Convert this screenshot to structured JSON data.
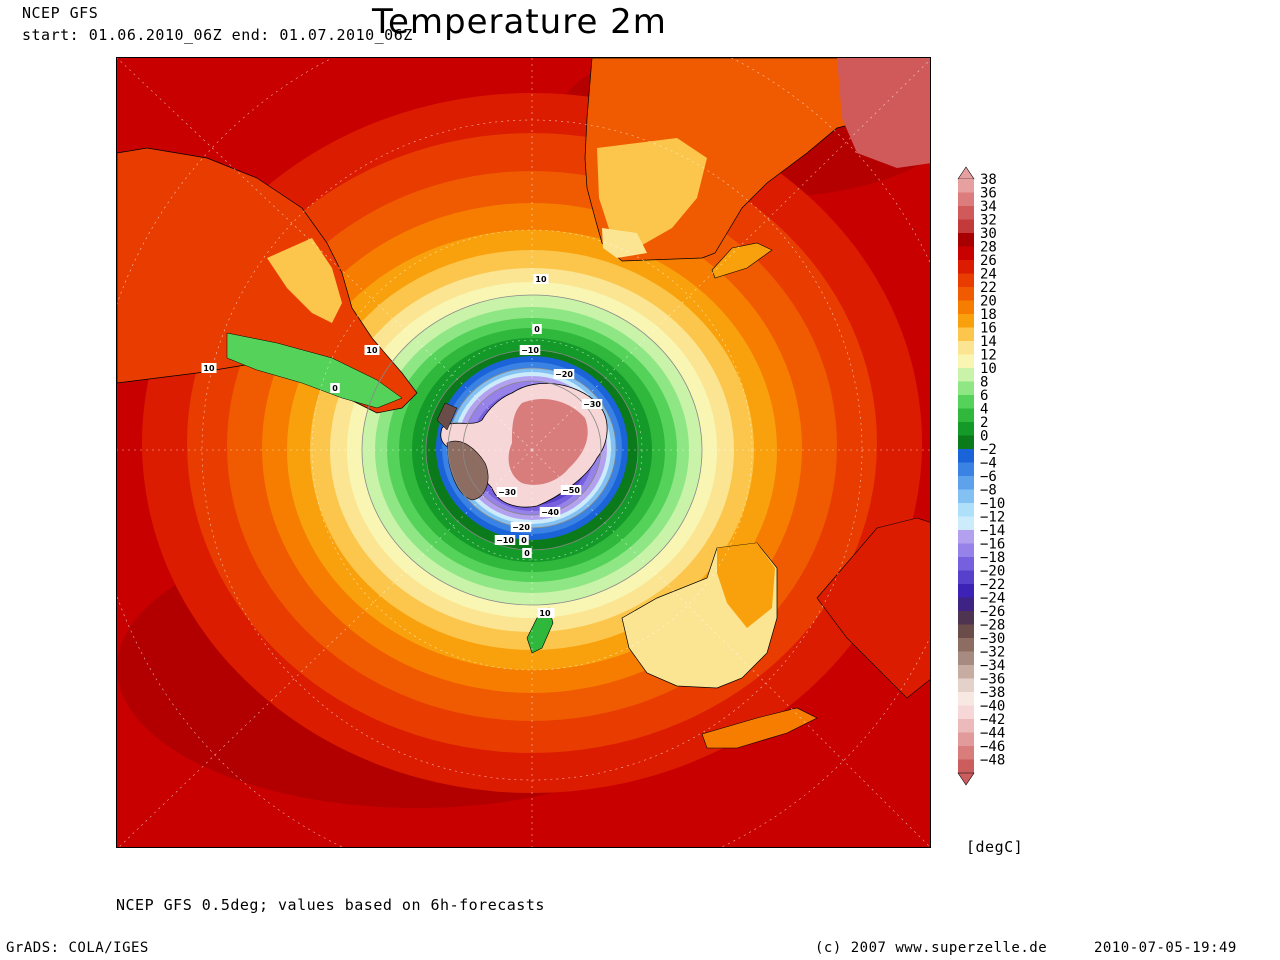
{
  "header": {
    "model": "NCEP GFS",
    "period": "start: 01.06.2010_06Z    end: 01.07.2010_06Z",
    "title": "Temperature 2m"
  },
  "map": {
    "projection": "south polar stereographic",
    "contour_labels": [
      "10",
      "10",
      "10",
      "0",
      "0",
      "10",
      "0",
      "-10",
      "-20",
      "-30",
      "-30",
      "-40",
      "-50",
      "-20",
      "-10",
      "0",
      "10"
    ]
  },
  "legend": {
    "unit": "[degC]",
    "labels": [
      "38",
      "36",
      "34",
      "32",
      "30",
      "28",
      "26",
      "24",
      "22",
      "20",
      "18",
      "16",
      "14",
      "12",
      "10",
      "8",
      "6",
      "4",
      "2",
      "0",
      "-2",
      "-4",
      "-6",
      "-8",
      "-10",
      "-12",
      "-14",
      "-16",
      "-18",
      "-20",
      "-22",
      "-24",
      "-26",
      "-28",
      "-30",
      "-32",
      "-34",
      "-36",
      "-38",
      "-40",
      "-42",
      "-44",
      "-46",
      "-48"
    ],
    "colors": [
      "#e7a0a0",
      "#dc7c7c",
      "#d05a5a",
      "#c23a3a",
      "#a80000",
      "#c80000",
      "#dc1c00",
      "#e83c00",
      "#f05a00",
      "#f77d00",
      "#f9a10c",
      "#fbc64b",
      "#fbe592",
      "#f9f6b4",
      "#c8f3a8",
      "#8fe685",
      "#55d25a",
      "#2fb83c",
      "#139a28",
      "#0b7a1a",
      "#1b63d9",
      "#3a82e3",
      "#5ea2ec",
      "#84c1f3",
      "#aee0fa",
      "#ccecfb",
      "#b3a0ef",
      "#9682e8",
      "#7760dd",
      "#5640cc",
      "#3d22b6",
      "#3e2384",
      "#4e3450",
      "#6a4c48",
      "#8d6c62",
      "#a88b80",
      "#c7aca2",
      "#e4d2ca",
      "#f7e8e2",
      "#f6d6d6",
      "#ecbaba",
      "#e29b9b",
      "#d87c7c",
      "#cc5d5d"
    ]
  },
  "caption": "NCEP GFS 0.5deg; values based on 6h-forecasts",
  "footer": {
    "software": "GrADS: COLA/IGES",
    "copyright": "(c) 2007 www.superzelle.de",
    "timestamp": "2010-07-05-19:49"
  }
}
